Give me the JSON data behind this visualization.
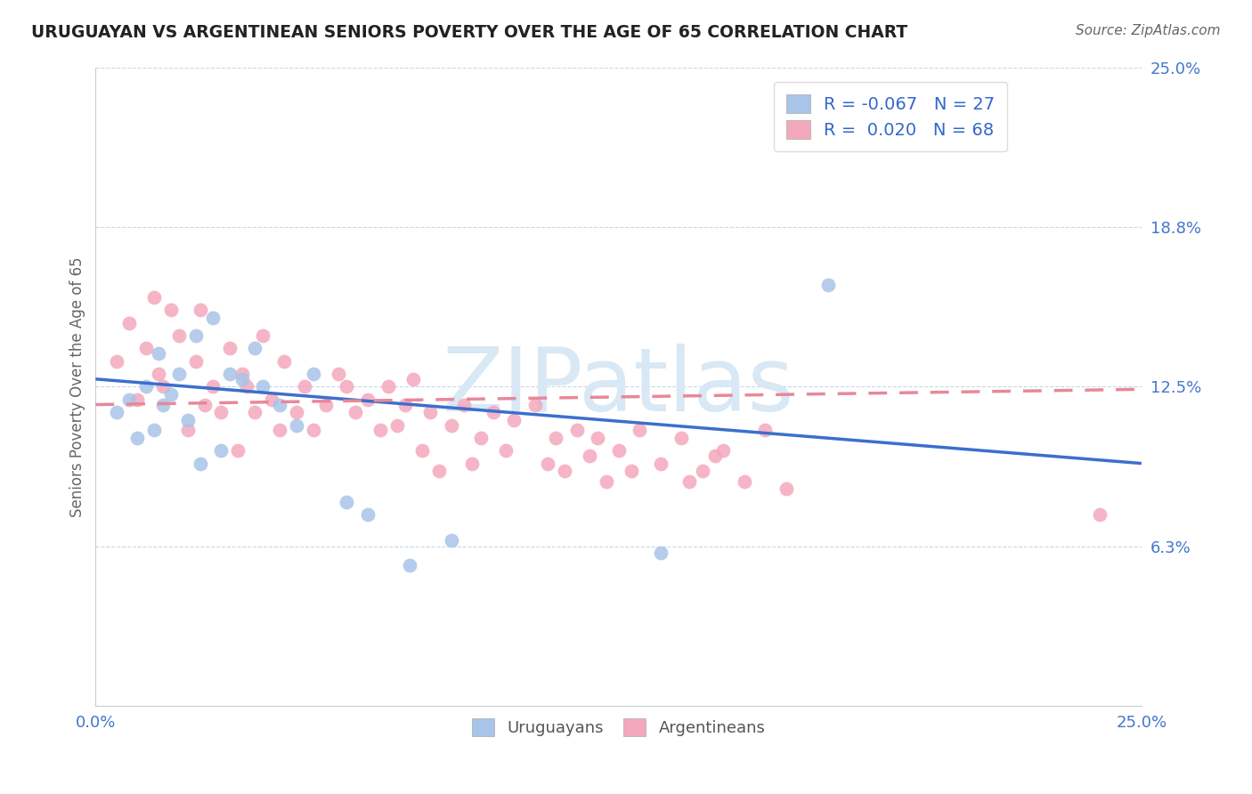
{
  "title": "URUGUAYAN VS ARGENTINEAN SENIORS POVERTY OVER THE AGE OF 65 CORRELATION CHART",
  "source": "Source: ZipAtlas.com",
  "ylabel": "Seniors Poverty Over the Age of 65",
  "xlim": [
    0,
    0.25
  ],
  "ylim": [
    0,
    0.25
  ],
  "yticks": [
    0.0,
    0.0625,
    0.125,
    0.1875,
    0.25
  ],
  "ytick_labels": [
    "",
    "6.3%",
    "12.5%",
    "18.8%",
    "25.0%"
  ],
  "grid_color": "#c8d8e8",
  "background_color": "#ffffff",
  "watermark": "ZIPatlas",
  "watermark_color": "#d8e8f4",
  "uruguayan_color": "#a8c4e8",
  "argentinean_color": "#f4a8be",
  "trend_uruguayan_color": "#3b6fcc",
  "trend_argentinean_color": "#e88898",
  "R_uruguayan": -0.067,
  "R_argentinean": 0.02,
  "N_uruguayan": 27,
  "N_argentinean": 68,
  "trend_uy_x0": 0.0,
  "trend_uy_y0": 0.128,
  "trend_uy_x1": 0.25,
  "trend_uy_y1": 0.095,
  "trend_ar_x0": 0.0,
  "trend_ar_y0": 0.118,
  "trend_ar_x1": 0.25,
  "trend_ar_y1": 0.124,
  "uruguayan_scatter_x": [
    0.005,
    0.008,
    0.01,
    0.012,
    0.014,
    0.015,
    0.016,
    0.018,
    0.02,
    0.022,
    0.024,
    0.025,
    0.028,
    0.03,
    0.032,
    0.035,
    0.038,
    0.04,
    0.044,
    0.048,
    0.052,
    0.06,
    0.065,
    0.075,
    0.085,
    0.135,
    0.175
  ],
  "uruguayan_scatter_y": [
    0.115,
    0.12,
    0.105,
    0.125,
    0.108,
    0.138,
    0.118,
    0.122,
    0.13,
    0.112,
    0.145,
    0.095,
    0.152,
    0.1,
    0.13,
    0.128,
    0.14,
    0.125,
    0.118,
    0.11,
    0.13,
    0.08,
    0.075,
    0.055,
    0.065,
    0.06,
    0.165
  ],
  "argentinean_scatter_x": [
    0.005,
    0.008,
    0.01,
    0.012,
    0.014,
    0.015,
    0.016,
    0.018,
    0.02,
    0.022,
    0.024,
    0.025,
    0.026,
    0.028,
    0.03,
    0.032,
    0.034,
    0.035,
    0.036,
    0.038,
    0.04,
    0.042,
    0.044,
    0.045,
    0.048,
    0.05,
    0.052,
    0.055,
    0.058,
    0.06,
    0.062,
    0.065,
    0.068,
    0.07,
    0.072,
    0.074,
    0.076,
    0.078,
    0.08,
    0.082,
    0.085,
    0.088,
    0.09,
    0.092,
    0.095,
    0.098,
    0.1,
    0.105,
    0.108,
    0.11,
    0.112,
    0.115,
    0.118,
    0.12,
    0.122,
    0.125,
    0.128,
    0.13,
    0.135,
    0.14,
    0.142,
    0.145,
    0.148,
    0.15,
    0.155,
    0.16,
    0.165,
    0.24
  ],
  "argentinean_scatter_y": [
    0.135,
    0.15,
    0.12,
    0.14,
    0.16,
    0.13,
    0.125,
    0.155,
    0.145,
    0.108,
    0.135,
    0.155,
    0.118,
    0.125,
    0.115,
    0.14,
    0.1,
    0.13,
    0.125,
    0.115,
    0.145,
    0.12,
    0.108,
    0.135,
    0.115,
    0.125,
    0.108,
    0.118,
    0.13,
    0.125,
    0.115,
    0.12,
    0.108,
    0.125,
    0.11,
    0.118,
    0.128,
    0.1,
    0.115,
    0.092,
    0.11,
    0.118,
    0.095,
    0.105,
    0.115,
    0.1,
    0.112,
    0.118,
    0.095,
    0.105,
    0.092,
    0.108,
    0.098,
    0.105,
    0.088,
    0.1,
    0.092,
    0.108,
    0.095,
    0.105,
    0.088,
    0.092,
    0.098,
    0.1,
    0.088,
    0.108,
    0.085,
    0.075
  ]
}
